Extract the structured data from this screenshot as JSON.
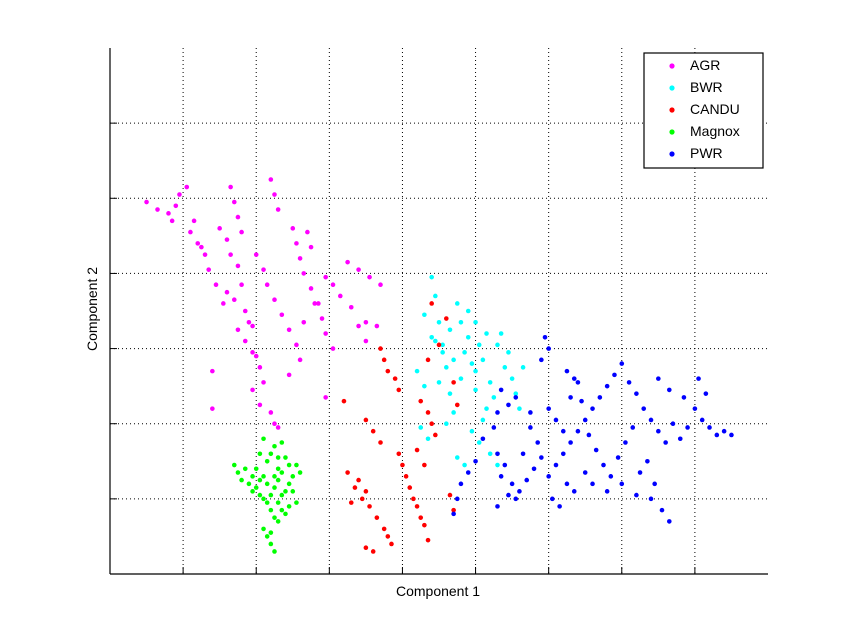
{
  "chart_data": {
    "type": "scatter",
    "title": "",
    "xlabel": "Component 1",
    "ylabel": "Component 2",
    "xlim": [
      0,
      9
    ],
    "ylim": [
      0,
      7
    ],
    "x_tick_labels": [],
    "y_tick_labels": [],
    "grid": true,
    "legend_position": "top-right",
    "series": [
      {
        "name": "AGR",
        "color": "#ff00ff",
        "points": [
          [
            0.5,
            4.95
          ],
          [
            0.65,
            4.85
          ],
          [
            0.8,
            4.8
          ],
          [
            0.9,
            4.9
          ],
          [
            0.95,
            5.05
          ],
          [
            1.05,
            5.15
          ],
          [
            0.85,
            4.7
          ],
          [
            1.1,
            4.55
          ],
          [
            1.2,
            4.4
          ],
          [
            1.3,
            4.25
          ],
          [
            1.35,
            4.05
          ],
          [
            1.45,
            3.85
          ],
          [
            1.5,
            4.6
          ],
          [
            1.6,
            4.45
          ],
          [
            1.65,
            4.25
          ],
          [
            1.75,
            4.1
          ],
          [
            1.8,
            3.85
          ],
          [
            1.7,
            3.65
          ],
          [
            1.85,
            3.5
          ],
          [
            1.9,
            3.35
          ],
          [
            1.75,
            3.25
          ],
          [
            1.85,
            3.1
          ],
          [
            1.95,
            2.95
          ],
          [
            2.05,
            2.75
          ],
          [
            2.1,
            2.55
          ],
          [
            1.95,
            2.45
          ],
          [
            2.05,
            2.25
          ],
          [
            2.2,
            2.15
          ],
          [
            2.25,
            2.0
          ],
          [
            2.3,
            1.95
          ],
          [
            1.65,
            5.15
          ],
          [
            1.7,
            4.95
          ],
          [
            1.75,
            4.75
          ],
          [
            1.8,
            4.55
          ],
          [
            2.0,
            4.25
          ],
          [
            2.1,
            4.05
          ],
          [
            2.15,
            3.85
          ],
          [
            2.25,
            3.65
          ],
          [
            2.35,
            3.45
          ],
          [
            2.45,
            3.25
          ],
          [
            2.55,
            3.05
          ],
          [
            2.6,
            2.85
          ],
          [
            2.2,
            5.25
          ],
          [
            2.25,
            5.05
          ],
          [
            2.3,
            4.85
          ],
          [
            2.5,
            4.6
          ],
          [
            2.55,
            4.4
          ],
          [
            2.6,
            4.2
          ],
          [
            2.65,
            4.0
          ],
          [
            2.75,
            3.8
          ],
          [
            2.8,
            3.6
          ],
          [
            2.9,
            3.4
          ],
          [
            2.95,
            3.2
          ],
          [
            3.05,
            3.0
          ],
          [
            2.7,
            4.55
          ],
          [
            2.75,
            4.35
          ],
          [
            2.95,
            3.95
          ],
          [
            3.05,
            3.85
          ],
          [
            3.15,
            3.7
          ],
          [
            3.3,
            3.55
          ],
          [
            3.4,
            3.3
          ],
          [
            3.5,
            3.1
          ],
          [
            3.25,
            4.15
          ],
          [
            3.4,
            4.05
          ],
          [
            3.55,
            3.95
          ],
          [
            3.7,
            3.85
          ],
          [
            3.5,
            3.35
          ],
          [
            3.65,
            3.3
          ],
          [
            1.4,
            2.7
          ],
          [
            1.4,
            2.2
          ],
          [
            2.95,
            2.35
          ],
          [
            1.15,
            4.7
          ],
          [
            1.25,
            4.35
          ],
          [
            1.55,
            3.6
          ],
          [
            1.6,
            3.75
          ],
          [
            1.95,
            3.3
          ],
          [
            2.0,
            2.9
          ],
          [
            2.45,
            2.65
          ],
          [
            2.65,
            3.35
          ],
          [
            2.85,
            3.6
          ]
        ]
      },
      {
        "name": "BWR",
        "color": "#00ffff",
        "points": [
          [
            4.4,
            3.95
          ],
          [
            4.45,
            3.7
          ],
          [
            4.3,
            3.45
          ],
          [
            4.5,
            3.35
          ],
          [
            4.4,
            3.15
          ],
          [
            4.55,
            2.95
          ],
          [
            4.6,
            2.75
          ],
          [
            4.5,
            2.55
          ],
          [
            4.65,
            2.4
          ],
          [
            4.75,
            3.6
          ],
          [
            4.8,
            3.35
          ],
          [
            4.9,
            3.15
          ],
          [
            4.85,
            2.95
          ],
          [
            4.95,
            2.8
          ],
          [
            4.8,
            2.6
          ],
          [
            5.0,
            2.45
          ],
          [
            5.05,
            3.05
          ],
          [
            5.1,
            2.85
          ],
          [
            5.0,
            2.7
          ],
          [
            5.2,
            2.55
          ],
          [
            5.25,
            2.35
          ],
          [
            5.15,
            2.2
          ],
          [
            5.1,
            2.05
          ],
          [
            4.95,
            1.9
          ],
          [
            5.05,
            1.75
          ],
          [
            5.2,
            1.6
          ],
          [
            5.3,
            1.45
          ],
          [
            4.7,
            2.15
          ],
          [
            4.6,
            2.0
          ],
          [
            4.55,
            3.05
          ],
          [
            4.7,
            2.85
          ],
          [
            4.65,
            3.25
          ],
          [
            5.35,
            3.2
          ],
          [
            5.45,
            2.95
          ],
          [
            5.4,
            2.75
          ],
          [
            5.5,
            2.6
          ],
          [
            5.55,
            2.4
          ],
          [
            5.6,
            2.2
          ],
          [
            5.3,
            3.05
          ],
          [
            4.9,
            3.5
          ],
          [
            5.0,
            3.35
          ],
          [
            5.15,
            3.2
          ],
          [
            4.2,
            2.7
          ],
          [
            4.3,
            2.5
          ],
          [
            4.25,
            1.95
          ],
          [
            4.35,
            1.8
          ],
          [
            4.45,
            3.1
          ],
          [
            4.75,
            1.55
          ],
          [
            4.85,
            1.45
          ],
          [
            5.65,
            2.75
          ]
        ]
      },
      {
        "name": "CANDU",
        "color": "#ff0000",
        "points": [
          [
            3.7,
            3.0
          ],
          [
            3.75,
            2.85
          ],
          [
            3.8,
            2.7
          ],
          [
            3.9,
            2.6
          ],
          [
            3.95,
            2.45
          ],
          [
            3.5,
            2.05
          ],
          [
            3.6,
            1.9
          ],
          [
            3.7,
            1.75
          ],
          [
            3.4,
            1.25
          ],
          [
            3.5,
            1.1
          ],
          [
            3.45,
            1.0
          ],
          [
            3.55,
            0.9
          ],
          [
            3.65,
            0.75
          ],
          [
            3.75,
            0.6
          ],
          [
            3.8,
            0.5
          ],
          [
            3.85,
            0.4
          ],
          [
            3.95,
            1.6
          ],
          [
            4.0,
            1.45
          ],
          [
            4.05,
            1.3
          ],
          [
            4.1,
            1.15
          ],
          [
            4.15,
            1.0
          ],
          [
            4.2,
            0.9
          ],
          [
            4.25,
            0.75
          ],
          [
            4.3,
            0.65
          ],
          [
            4.35,
            0.45
          ],
          [
            4.25,
            2.3
          ],
          [
            4.35,
            2.15
          ],
          [
            4.4,
            2.0
          ],
          [
            4.45,
            1.85
          ],
          [
            4.2,
            1.65
          ],
          [
            4.3,
            1.45
          ],
          [
            4.5,
            3.05
          ],
          [
            4.6,
            3.4
          ],
          [
            4.4,
            3.6
          ],
          [
            4.35,
            2.85
          ],
          [
            3.25,
            1.35
          ],
          [
            3.35,
            1.15
          ],
          [
            3.3,
            0.95
          ],
          [
            3.5,
            0.35
          ],
          [
            3.6,
            0.3
          ],
          [
            4.65,
            1.05
          ],
          [
            4.7,
            0.85
          ],
          [
            3.2,
            2.3
          ],
          [
            4.75,
            2.25
          ],
          [
            4.7,
            2.55
          ]
        ]
      },
      {
        "name": "Magnox",
        "color": "#00ff00",
        "points": [
          [
            1.7,
            1.45
          ],
          [
            1.75,
            1.35
          ],
          [
            1.8,
            1.25
          ],
          [
            1.9,
            1.2
          ],
          [
            1.95,
            1.1
          ],
          [
            2.05,
            1.05
          ],
          [
            2.1,
            1.3
          ],
          [
            2.15,
            1.2
          ],
          [
            2.2,
            1.05
          ],
          [
            2.25,
            1.15
          ],
          [
            2.3,
            1.25
          ],
          [
            2.35,
            1.35
          ],
          [
            2.4,
            1.1
          ],
          [
            2.45,
            1.2
          ],
          [
            2.5,
            1.3
          ],
          [
            2.45,
            1.45
          ],
          [
            2.55,
            1.45
          ],
          [
            2.6,
            1.35
          ],
          [
            2.15,
            1.5
          ],
          [
            2.2,
            1.6
          ],
          [
            2.25,
            1.7
          ],
          [
            2.3,
            1.55
          ],
          [
            2.35,
            1.75
          ],
          [
            2.1,
            1.8
          ],
          [
            2.0,
            1.4
          ],
          [
            2.05,
            1.6
          ],
          [
            2.15,
            0.95
          ],
          [
            2.2,
            0.85
          ],
          [
            2.25,
            0.75
          ],
          [
            2.3,
            0.95
          ],
          [
            2.35,
            0.85
          ],
          [
            2.4,
            0.8
          ],
          [
            2.1,
            0.6
          ],
          [
            2.15,
            0.5
          ],
          [
            2.2,
            0.4
          ],
          [
            2.25,
            0.3
          ],
          [
            2.2,
            0.55
          ],
          [
            2.3,
            1.4
          ],
          [
            2.4,
            1.55
          ],
          [
            2.5,
            1.1
          ],
          [
            2.55,
            0.95
          ],
          [
            2.45,
            0.9
          ],
          [
            1.85,
            1.4
          ],
          [
            1.95,
            1.3
          ],
          [
            2.0,
            1.15
          ],
          [
            2.05,
            1.25
          ],
          [
            2.1,
            1.0
          ],
          [
            2.3,
            0.7
          ],
          [
            2.35,
            1.05
          ],
          [
            2.25,
            1.3
          ]
        ]
      },
      {
        "name": "PWR",
        "color": "#0000ff",
        "points": [
          [
            5.95,
            3.15
          ],
          [
            6.0,
            3.0
          ],
          [
            5.9,
            2.85
          ],
          [
            5.35,
            2.45
          ],
          [
            5.45,
            2.25
          ],
          [
            5.3,
            2.15
          ],
          [
            5.25,
            1.95
          ],
          [
            5.1,
            1.8
          ],
          [
            5.3,
            1.6
          ],
          [
            5.4,
            1.45
          ],
          [
            5.35,
            1.3
          ],
          [
            5.5,
            1.2
          ],
          [
            5.45,
            1.05
          ],
          [
            5.3,
            0.9
          ],
          [
            5.0,
            1.5
          ],
          [
            4.9,
            1.35
          ],
          [
            4.8,
            1.2
          ],
          [
            4.75,
            1.0
          ],
          [
            4.7,
            0.8
          ],
          [
            5.55,
            1.0
          ],
          [
            5.6,
            1.1
          ],
          [
            5.7,
            1.25
          ],
          [
            5.8,
            1.4
          ],
          [
            5.9,
            1.55
          ],
          [
            6.0,
            1.3
          ],
          [
            6.1,
            1.45
          ],
          [
            6.2,
            1.6
          ],
          [
            6.3,
            1.75
          ],
          [
            6.4,
            1.9
          ],
          [
            6.5,
            2.05
          ],
          [
            6.6,
            2.2
          ],
          [
            6.7,
            2.35
          ],
          [
            6.8,
            2.5
          ],
          [
            6.9,
            2.65
          ],
          [
            7.0,
            2.8
          ],
          [
            7.1,
            2.55
          ],
          [
            7.2,
            2.4
          ],
          [
            7.3,
            2.2
          ],
          [
            7.4,
            2.05
          ],
          [
            7.5,
            1.9
          ],
          [
            7.6,
            1.75
          ],
          [
            7.7,
            2.0
          ],
          [
            7.8,
            1.8
          ],
          [
            7.9,
            1.95
          ],
          [
            8.0,
            2.2
          ],
          [
            8.1,
            2.05
          ],
          [
            8.2,
            1.95
          ],
          [
            8.3,
            1.85
          ],
          [
            8.4,
            1.9
          ],
          [
            8.5,
            1.85
          ],
          [
            7.35,
            1.5
          ],
          [
            7.25,
            1.35
          ],
          [
            7.45,
            1.2
          ],
          [
            7.55,
            0.85
          ],
          [
            7.65,
            0.7
          ],
          [
            6.0,
            2.2
          ],
          [
            6.1,
            2.05
          ],
          [
            6.2,
            1.9
          ],
          [
            6.3,
            2.35
          ],
          [
            6.4,
            2.55
          ],
          [
            6.45,
            2.3
          ],
          [
            6.55,
            1.85
          ],
          [
            6.65,
            1.65
          ],
          [
            6.75,
            1.45
          ],
          [
            6.85,
            1.3
          ],
          [
            6.95,
            1.55
          ],
          [
            7.05,
            1.75
          ],
          [
            7.15,
            1.95
          ],
          [
            5.75,
            1.95
          ],
          [
            5.85,
            1.75
          ],
          [
            5.65,
            1.6
          ],
          [
            5.75,
            2.15
          ],
          [
            5.55,
            2.35
          ],
          [
            6.25,
            1.2
          ],
          [
            6.35,
            1.1
          ],
          [
            6.05,
            1.0
          ],
          [
            6.15,
            0.9
          ],
          [
            6.5,
            1.35
          ],
          [
            6.6,
            1.2
          ],
          [
            6.8,
            1.1
          ],
          [
            7.0,
            1.2
          ],
          [
            7.2,
            1.05
          ],
          [
            7.4,
            1.0
          ],
          [
            6.25,
            2.7
          ],
          [
            6.35,
            2.6
          ],
          [
            7.5,
            2.6
          ],
          [
            7.65,
            2.45
          ],
          [
            7.85,
            2.35
          ],
          [
            8.05,
            2.6
          ],
          [
            8.15,
            2.4
          ]
        ]
      }
    ]
  }
}
